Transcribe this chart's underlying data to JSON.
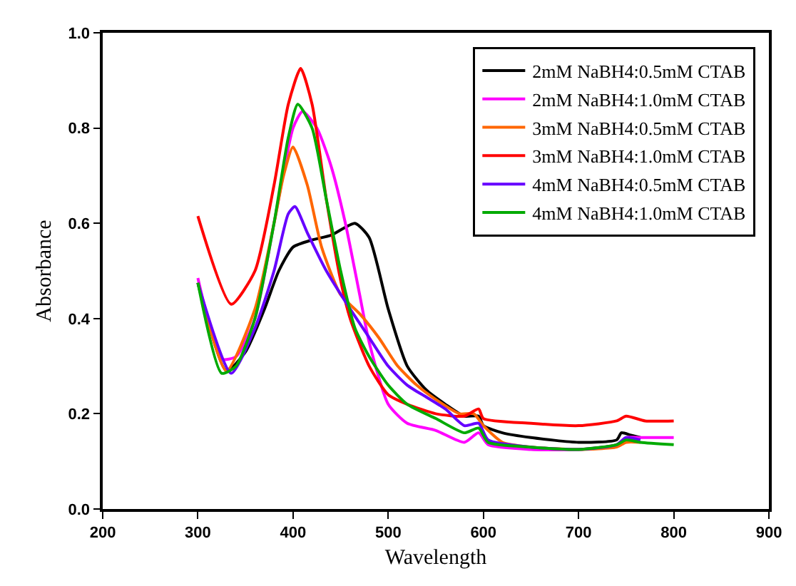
{
  "chart_data": {
    "type": "line",
    "xlabel": "Wavelength",
    "ylabel": "Absorbance",
    "xlim": [
      200,
      900
    ],
    "xticks": [
      200,
      300,
      400,
      500,
      600,
      700,
      800,
      900
    ],
    "ylim": [
      0,
      1.0
    ],
    "yticks": [
      {
        "value": 0,
        "label": "0.0"
      },
      0.2,
      0.4,
      0.6,
      0.8,
      {
        "value": 1.0,
        "label": "1.0"
      }
    ],
    "legend": "top right",
    "marker": "none",
    "line_style": "solid",
    "series": [
      {
        "name": "2mM NaBH4:0.5mM CTAB",
        "color": "#000000",
        "x": [
          300,
          330,
          350,
          370,
          385,
          400,
          420,
          440,
          465,
          480,
          500,
          520,
          540,
          560,
          580,
          595,
          600,
          620,
          650,
          700,
          740,
          745,
          755,
          765
        ],
        "values": [
          0.475,
          0.29,
          0.33,
          0.42,
          0.5,
          0.55,
          0.565,
          0.575,
          0.6,
          0.57,
          0.42,
          0.3,
          0.25,
          0.22,
          0.195,
          0.195,
          0.175,
          0.16,
          0.15,
          0.14,
          0.145,
          0.16,
          0.155,
          0.15
        ]
      },
      {
        "name": "2mM NaBH4:1.0mM CTAB",
        "color": "#ff00ff",
        "x": [
          300,
          325,
          340,
          360,
          380,
          400,
          410,
          425,
          440,
          455,
          470,
          480,
          500,
          520,
          550,
          580,
          595,
          605,
          650,
          700,
          740,
          750,
          765,
          800
        ],
        "values": [
          0.485,
          0.315,
          0.32,
          0.4,
          0.6,
          0.8,
          0.835,
          0.8,
          0.72,
          0.6,
          0.45,
          0.35,
          0.22,
          0.18,
          0.165,
          0.14,
          0.16,
          0.135,
          0.125,
          0.125,
          0.135,
          0.15,
          0.15,
          0.15
        ]
      },
      {
        "name": "3mM NaBH4:0.5mM CTAB",
        "color": "#ff6600",
        "x": [
          300,
          330,
          360,
          380,
          390,
          400,
          415,
          430,
          450,
          470,
          490,
          510,
          530,
          550,
          575,
          590,
          600,
          620,
          650,
          700,
          740,
          750,
          765
        ],
        "values": [
          0.475,
          0.29,
          0.42,
          0.6,
          0.7,
          0.76,
          0.68,
          0.55,
          0.45,
          0.41,
          0.36,
          0.3,
          0.26,
          0.23,
          0.2,
          0.2,
          0.175,
          0.14,
          0.13,
          0.125,
          0.13,
          0.14,
          0.14
        ]
      },
      {
        "name": "3mM NaBH4:1.0mM CTAB",
        "color": "#ff0000",
        "x": [
          300,
          335,
          360,
          380,
          395,
          408,
          420,
          435,
          450,
          460,
          480,
          500,
          520,
          550,
          580,
          595,
          600,
          650,
          700,
          740,
          750,
          770,
          800
        ],
        "values": [
          0.615,
          0.43,
          0.5,
          0.68,
          0.85,
          0.925,
          0.85,
          0.65,
          0.48,
          0.4,
          0.3,
          0.24,
          0.22,
          0.2,
          0.195,
          0.21,
          0.19,
          0.18,
          0.175,
          0.185,
          0.195,
          0.185,
          0.185
        ]
      },
      {
        "name": "4mM NaBH4:0.5mM CTAB",
        "color": "#6600ff",
        "x": [
          300,
          335,
          360,
          380,
          395,
          402,
          415,
          435,
          460,
          480,
          500,
          520,
          540,
          560,
          580,
          595,
          605,
          650,
          700,
          740,
          750,
          765
        ],
        "values": [
          0.475,
          0.285,
          0.38,
          0.5,
          0.62,
          0.635,
          0.58,
          0.5,
          0.42,
          0.36,
          0.3,
          0.26,
          0.235,
          0.21,
          0.175,
          0.18,
          0.145,
          0.13,
          0.125,
          0.135,
          0.15,
          0.145
        ]
      },
      {
        "name": "4mM NaBH4:1.0mM CTAB",
        "color": "#00aa00",
        "x": [
          300,
          325,
          340,
          360,
          380,
          395,
          405,
          420,
          435,
          450,
          465,
          480,
          500,
          520,
          550,
          580,
          595,
          605,
          650,
          700,
          740,
          750,
          765,
          800
        ],
        "values": [
          0.475,
          0.285,
          0.3,
          0.4,
          0.6,
          0.78,
          0.85,
          0.8,
          0.65,
          0.5,
          0.38,
          0.32,
          0.26,
          0.22,
          0.19,
          0.16,
          0.17,
          0.14,
          0.13,
          0.125,
          0.135,
          0.145,
          0.14,
          0.135
        ]
      }
    ]
  }
}
